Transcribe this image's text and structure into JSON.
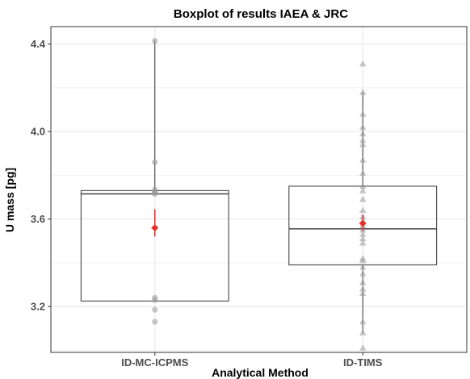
{
  "chart_data": {
    "type": "boxplot",
    "title": "Boxplot of results IAEA & JRC",
    "xlabel": "Analytical Method",
    "ylabel": "U mass [pg]",
    "ylim": [
      2.99,
      4.48
    ],
    "yticks": [
      "3.2",
      "3.6",
      "4.0",
      "4.4"
    ],
    "ytick_values": [
      3.2,
      3.6,
      4.0,
      4.4
    ],
    "grid": true,
    "categories": [
      "ID-MC-ICPMS",
      "ID-TIMS"
    ],
    "boxes": [
      {
        "category": "ID-MC-ICPMS",
        "q1": 3.225,
        "median": 3.715,
        "q3": 3.73,
        "whisker_low": 3.225,
        "whisker_high": 4.415,
        "mean": 3.56,
        "mean_low": 3.52,
        "mean_high": 3.645,
        "points": [
          4.415,
          3.86,
          3.735,
          3.725,
          3.72,
          3.715,
          3.24,
          3.23,
          3.185,
          3.13
        ],
        "marker": "circle"
      },
      {
        "category": "ID-TIMS",
        "q1": 3.39,
        "median": 3.555,
        "q3": 3.75,
        "whisker_low": 3.08,
        "whisker_high": 4.18,
        "mean": 3.58,
        "mean_low": 3.545,
        "mean_high": 3.62,
        "points": [
          4.31,
          4.18,
          4.08,
          4.02,
          3.99,
          3.96,
          3.94,
          3.87,
          3.81,
          3.75,
          3.73,
          3.69,
          3.64,
          3.61,
          3.59,
          3.57,
          3.55,
          3.53,
          3.51,
          3.49,
          3.42,
          3.41,
          3.38,
          3.35,
          3.31,
          3.28,
          3.26,
          3.13,
          3.01,
          3.08
        ],
        "marker": "triangle"
      }
    ],
    "colors": {
      "points": "#999999",
      "box": "#333333",
      "mean": "#e8302a",
      "grid": "#e6e6e6"
    }
  }
}
